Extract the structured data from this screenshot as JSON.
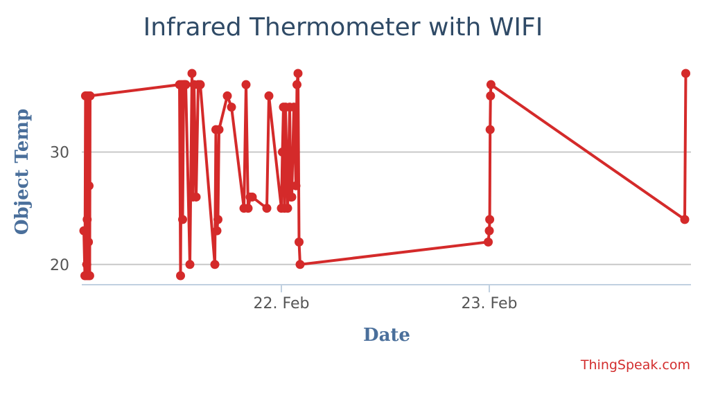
{
  "chart_data": {
    "type": "line",
    "title": "Infrared Thermometer with WIFI",
    "xlabel": "Date",
    "ylabel": "Object Temp",
    "credit": "ThingSpeak.com",
    "x_unit": "days",
    "xlim": [
      21.04,
      23.97
    ],
    "ylim": [
      18.2,
      38.6
    ],
    "yticks": [
      20,
      30
    ],
    "xticks": [
      {
        "value": 22.0,
        "label": "22. Feb"
      },
      {
        "value": 23.0,
        "label": "23. Feb"
      }
    ],
    "grid": true,
    "legend": "none",
    "colors": {
      "series": "#d42a2a",
      "grid": "#c8c8c8",
      "title": "#2f4a66",
      "axis_title": "#4a6f9b"
    },
    "series": [
      {
        "x": [
          21.05,
          21.055,
          21.058,
          21.06,
          21.062,
          21.064,
          21.066,
          21.068,
          21.07,
          21.072,
          21.075,
          21.078,
          21.08,
          21.51,
          21.515,
          21.52,
          21.525,
          21.53,
          21.535,
          21.54,
          21.56,
          21.57,
          21.575,
          21.58,
          21.59,
          21.6,
          21.61,
          21.68,
          21.685,
          21.69,
          21.695,
          21.7,
          21.74,
          21.76,
          21.82,
          21.83,
          21.84,
          21.85,
          21.86,
          21.93,
          21.94,
          22.0,
          22.005,
          22.01,
          22.015,
          22.02,
          22.03,
          22.04,
          22.045,
          22.05,
          22.06,
          22.07,
          22.075,
          22.08,
          22.085,
          22.09,
          22.995,
          23.0,
          23.002,
          23.004,
          23.006,
          23.008,
          23.94,
          23.945
        ],
        "y": [
          23,
          19,
          35,
          19,
          35,
          20,
          24,
          19,
          35,
          22,
          27,
          19,
          35,
          36,
          19,
          36,
          24,
          36,
          36,
          36,
          20,
          37,
          26,
          36,
          26,
          36,
          36,
          20,
          32,
          23,
          24,
          32,
          35,
          34,
          25,
          36,
          25,
          26,
          26,
          25,
          35,
          25,
          30,
          34,
          25,
          34,
          25,
          34,
          26,
          26,
          34,
          27,
          36,
          37,
          22,
          20,
          22,
          23,
          24,
          32,
          35,
          36,
          24,
          37
        ]
      }
    ]
  }
}
